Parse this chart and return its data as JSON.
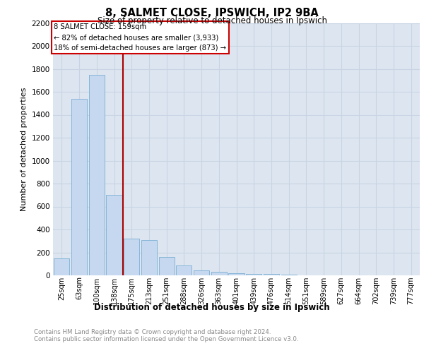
{
  "title": "8, SALMET CLOSE, IPSWICH, IP2 9BA",
  "subtitle": "Size of property relative to detached houses in Ipswich",
  "xlabel": "Distribution of detached houses by size in Ipswich",
  "ylabel": "Number of detached properties",
  "categories": [
    "25sqm",
    "63sqm",
    "100sqm",
    "138sqm",
    "175sqm",
    "213sqm",
    "251sqm",
    "288sqm",
    "326sqm",
    "363sqm",
    "401sqm",
    "439sqm",
    "476sqm",
    "514sqm",
    "551sqm",
    "589sqm",
    "627sqm",
    "664sqm",
    "702sqm",
    "739sqm",
    "777sqm"
  ],
  "values": [
    150,
    1540,
    1750,
    700,
    320,
    310,
    160,
    88,
    45,
    28,
    20,
    15,
    15,
    5,
    3,
    2,
    1,
    1,
    1,
    1,
    0
  ],
  "bar_color": "#c5d8ef",
  "bar_edge_color": "#7aafd4",
  "vline_color": "#aa0000",
  "annotation_box_color": "#cc0000",
  "annotation_text_line1": "8 SALMET CLOSE: 159sqm",
  "annotation_text_line2": "← 82% of detached houses are smaller (3,933)",
  "annotation_text_line3": "18% of semi-detached houses are larger (873) →",
  "ylim": [
    0,
    2200
  ],
  "yticks": [
    0,
    200,
    400,
    600,
    800,
    1000,
    1200,
    1400,
    1600,
    1800,
    2000,
    2200
  ],
  "grid_color": "#c8d4e4",
  "background_color": "#dde5f0",
  "footer_line1": "Contains HM Land Registry data © Crown copyright and database right 2024.",
  "footer_line2": "Contains public sector information licensed under the Open Government Licence v3.0.",
  "figure_bg": "#ffffff"
}
